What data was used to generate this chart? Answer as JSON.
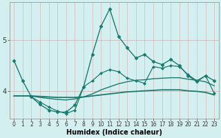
{
  "xlabel": "Humidex (Indice chaleur)",
  "bg_color": "#d4efef",
  "line_color": "#1a7a6e",
  "grid_color_v": "#c8d8d8",
  "grid_color_h": "#c0b8b8",
  "xmin": -0.5,
  "xmax": 23.5,
  "ymin": 3.45,
  "ymax": 5.75,
  "yticks": [
    4,
    5
  ],
  "xticks": [
    0,
    1,
    2,
    3,
    4,
    5,
    6,
    7,
    8,
    9,
    10,
    11,
    12,
    13,
    14,
    15,
    16,
    17,
    18,
    19,
    20,
    21,
    22,
    23
  ],
  "series": [
    {
      "x": [
        0,
        1,
        2,
        3,
        4,
        5,
        6,
        7,
        8,
        9,
        10,
        11,
        12,
        13,
        14,
        15,
        16,
        17,
        18,
        19,
        20,
        21,
        22,
        23
      ],
      "y": [
        4.6,
        4.2,
        3.88,
        3.73,
        3.62,
        3.58,
        3.58,
        3.72,
        4.08,
        4.72,
        5.28,
        5.62,
        5.08,
        4.85,
        4.65,
        4.72,
        4.58,
        4.52,
        4.62,
        4.5,
        4.3,
        4.18,
        4.3,
        4.2
      ],
      "marker": "D",
      "markersize": 2.5,
      "linewidth": 1.0,
      "zorder": 5
    },
    {
      "x": [
        0,
        1,
        2,
        3,
        4,
        5,
        6,
        7,
        8,
        9,
        10,
        11,
        12,
        13,
        14,
        15,
        16,
        17,
        18,
        19,
        20,
        21,
        22,
        23
      ],
      "y": [
        3.9,
        3.9,
        3.9,
        3.89,
        3.88,
        3.87,
        3.87,
        3.87,
        3.88,
        3.9,
        3.92,
        3.94,
        3.96,
        3.98,
        3.99,
        4.0,
        4.01,
        4.02,
        4.02,
        4.02,
        4.0,
        3.99,
        3.97,
        3.92
      ],
      "marker": null,
      "markersize": 0,
      "linewidth": 1.3,
      "zorder": 2
    },
    {
      "x": [
        0,
        1,
        2,
        3,
        4,
        5,
        6,
        7,
        8,
        9,
        10,
        11,
        12,
        13,
        14,
        15,
        16,
        17,
        18,
        19,
        20,
        21,
        22,
        23
      ],
      "y": [
        3.9,
        3.9,
        3.9,
        3.87,
        3.85,
        3.83,
        3.82,
        3.84,
        3.88,
        3.94,
        4.02,
        4.08,
        4.14,
        4.18,
        4.21,
        4.22,
        4.24,
        4.25,
        4.26,
        4.26,
        4.23,
        4.21,
        4.18,
        4.1
      ],
      "marker": null,
      "markersize": 0,
      "linewidth": 1.0,
      "zorder": 3
    },
    {
      "x": [
        2,
        3,
        4,
        5,
        6,
        7,
        8,
        9,
        10,
        11,
        12,
        13,
        14,
        15,
        16,
        17,
        18,
        19,
        20,
        21,
        22,
        23
      ],
      "y": [
        3.88,
        3.78,
        3.68,
        3.6,
        3.55,
        3.62,
        4.08,
        4.2,
        4.35,
        4.42,
        4.38,
        4.25,
        4.2,
        4.15,
        4.48,
        4.45,
        4.5,
        4.48,
        4.32,
        4.2,
        4.3,
        3.95
      ],
      "marker": "D",
      "markersize": 2.0,
      "linewidth": 0.9,
      "zorder": 4
    }
  ],
  "xlabel_fontsize": 7,
  "tick_fontsize": 5.5,
  "ytick_fontsize": 7
}
